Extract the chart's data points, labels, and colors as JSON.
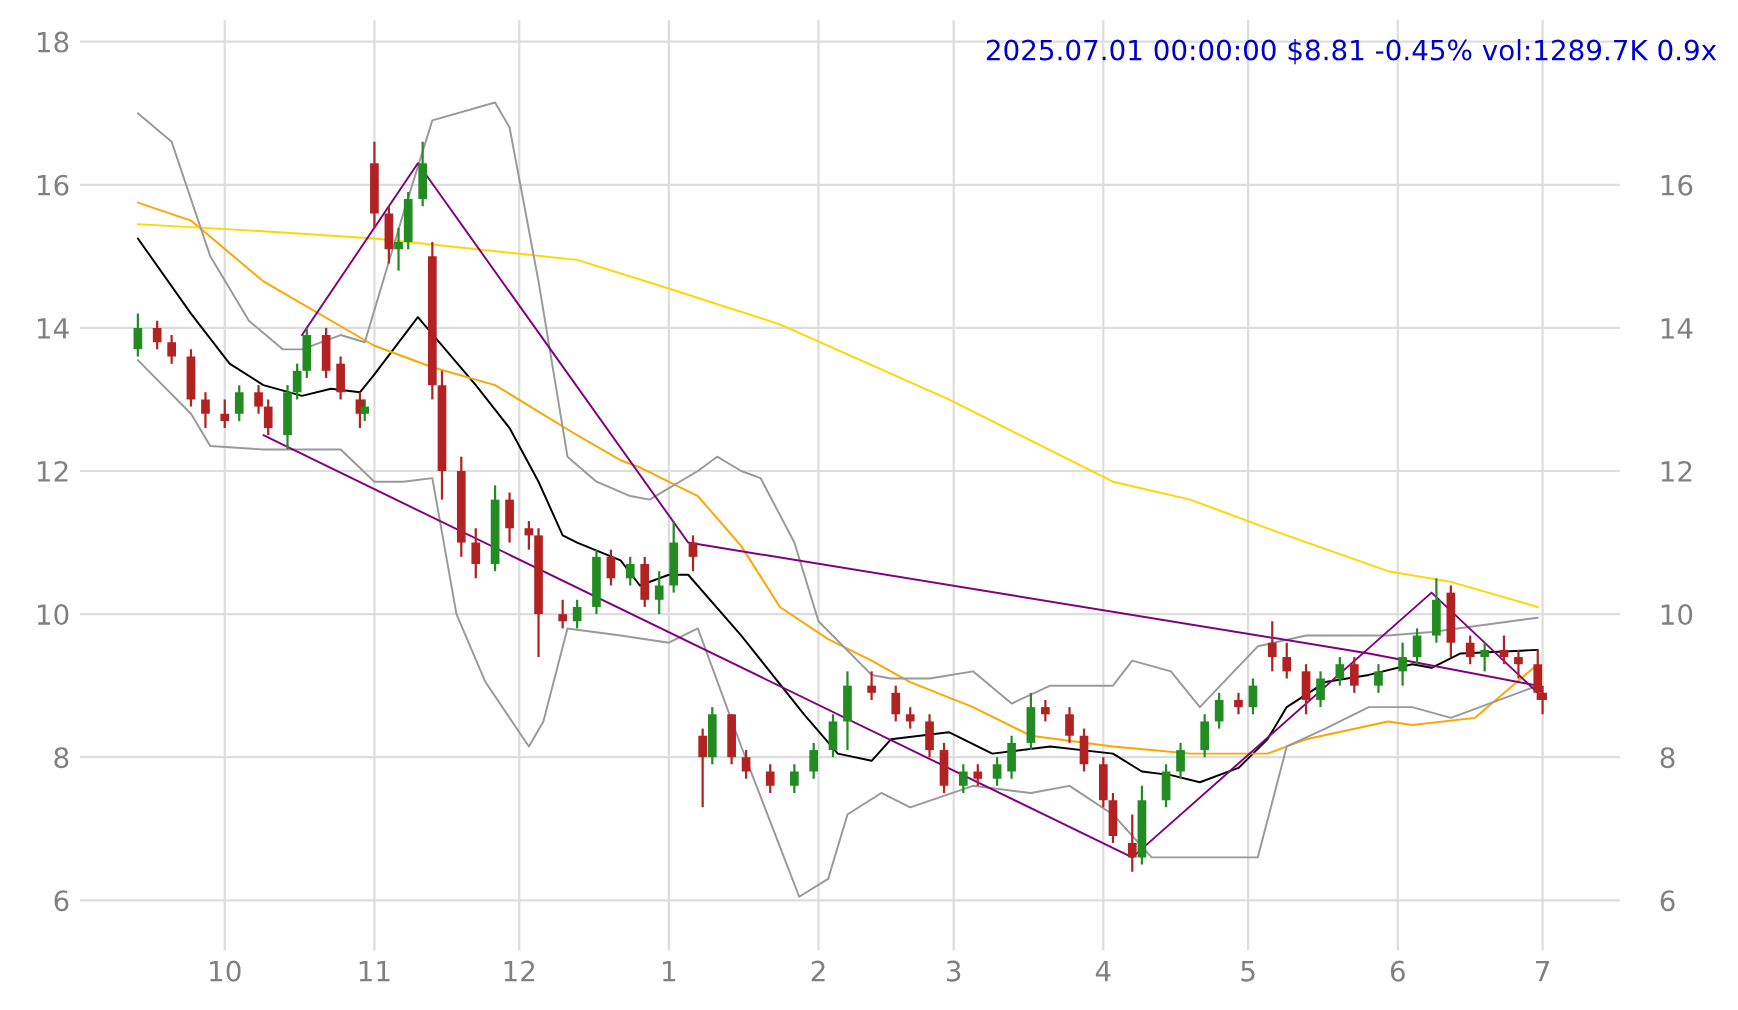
{
  "chart_data": {
    "type": "candlestick",
    "title": "2025.07.01 00:00:00 $8.81 -0.45% vol:1289.7K 0.9x",
    "x": [
      "2024-09-13",
      "2024-09-17",
      "2024-09-20",
      "2024-09-24",
      "2024-09-27",
      "2024-10-01",
      "2024-10-04",
      "2024-10-08",
      "2024-10-10",
      "2024-10-14",
      "2024-10-16",
      "2024-10-18",
      "2024-10-22",
      "2024-10-25",
      "2024-10-29",
      "2024-10-30",
      "2024-11-01",
      "2024-11-04",
      "2024-11-06",
      "2024-11-08",
      "2024-11-11",
      "2024-11-13",
      "2024-11-15",
      "2024-11-19",
      "2024-11-22",
      "2024-11-26",
      "2024-11-29",
      "2024-12-03",
      "2024-12-05",
      "2024-12-10",
      "2024-12-13",
      "2024-12-17",
      "2024-12-20",
      "2024-12-24",
      "2024-12-27",
      "2024-12-30",
      "2025-01-02",
      "2025-01-06",
      "2025-01-08",
      "2025-01-10",
      "2025-01-14",
      "2025-01-17",
      "2025-01-22",
      "2025-01-27",
      "2025-01-31",
      "2025-02-04",
      "2025-02-07",
      "2025-02-12",
      "2025-02-17",
      "2025-02-20",
      "2025-02-24",
      "2025-02-27",
      "2025-03-03",
      "2025-03-06",
      "2025-03-10",
      "2025-03-13",
      "2025-03-17",
      "2025-03-20",
      "2025-03-25",
      "2025-03-28",
      "2025-04-01",
      "2025-04-03",
      "2025-04-07",
      "2025-04-09",
      "2025-04-14",
      "2025-04-17",
      "2025-04-22",
      "2025-04-25",
      "2025-04-29",
      "2025-05-02",
      "2025-05-06",
      "2025-05-09",
      "2025-05-13",
      "2025-05-16",
      "2025-05-20",
      "2025-05-23",
      "2025-05-28",
      "2025-06-02",
      "2025-06-05",
      "2025-06-09",
      "2025-06-12",
      "2025-06-16",
      "2025-06-19",
      "2025-06-23",
      "2025-06-26",
      "2025-06-30",
      "2025-07-01"
    ],
    "ohlc": [
      [
        13.7,
        14.2,
        13.6,
        14.0
      ],
      [
        14.0,
        14.1,
        13.7,
        13.8
      ],
      [
        13.8,
        13.9,
        13.5,
        13.6
      ],
      [
        13.6,
        13.7,
        12.9,
        13.0
      ],
      [
        13.0,
        13.1,
        12.6,
        12.8
      ],
      [
        12.8,
        13.0,
        12.6,
        12.7
      ],
      [
        12.8,
        13.2,
        12.7,
        13.1
      ],
      [
        13.1,
        13.2,
        12.8,
        12.9
      ],
      [
        12.9,
        13.0,
        12.5,
        12.6
      ],
      [
        12.5,
        13.2,
        12.3,
        13.1
      ],
      [
        13.1,
        13.5,
        13.0,
        13.4
      ],
      [
        13.4,
        14.0,
        13.3,
        13.9
      ],
      [
        13.9,
        14.0,
        13.3,
        13.4
      ],
      [
        13.5,
        13.6,
        13.0,
        13.1
      ],
      [
        13.0,
        13.1,
        12.6,
        12.8
      ],
      [
        12.8,
        13.0,
        12.7,
        12.9
      ],
      [
        16.3,
        16.6,
        15.4,
        15.6
      ],
      [
        15.6,
        15.7,
        14.9,
        15.1
      ],
      [
        15.1,
        15.4,
        14.8,
        15.2
      ],
      [
        15.2,
        15.9,
        15.1,
        15.8
      ],
      [
        15.8,
        16.6,
        15.7,
        16.3
      ],
      [
        15.0,
        15.2,
        13.0,
        13.2
      ],
      [
        13.2,
        13.4,
        11.6,
        12.0
      ],
      [
        12.0,
        12.2,
        10.8,
        11.0
      ],
      [
        11.0,
        11.2,
        10.5,
        10.7
      ],
      [
        10.7,
        11.8,
        10.6,
        11.6
      ],
      [
        11.6,
        11.7,
        11.0,
        11.2
      ],
      [
        11.2,
        11.3,
        10.9,
        11.1
      ],
      [
        11.1,
        11.2,
        9.4,
        10.0
      ],
      [
        10.0,
        10.2,
        9.8,
        9.9
      ],
      [
        9.9,
        10.2,
        9.8,
        10.1
      ],
      [
        10.1,
        10.9,
        10.0,
        10.8
      ],
      [
        10.8,
        10.9,
        10.4,
        10.5
      ],
      [
        10.5,
        10.8,
        10.4,
        10.7
      ],
      [
        10.7,
        10.8,
        10.1,
        10.2
      ],
      [
        10.2,
        10.6,
        10.0,
        10.4
      ],
      [
        10.4,
        11.3,
        10.3,
        11.0
      ],
      [
        11.0,
        11.1,
        10.6,
        10.8
      ],
      [
        8.3,
        8.4,
        7.3,
        8.0
      ],
      [
        8.0,
        8.7,
        7.9,
        8.6
      ],
      [
        8.6,
        8.6,
        7.9,
        8.0
      ],
      [
        8.0,
        8.1,
        7.7,
        7.8
      ],
      [
        7.8,
        7.9,
        7.5,
        7.6
      ],
      [
        7.6,
        7.9,
        7.5,
        7.8
      ],
      [
        7.8,
        8.2,
        7.7,
        8.1
      ],
      [
        8.1,
        8.6,
        8.0,
        8.5
      ],
      [
        8.5,
        9.2,
        8.1,
        9.0
      ],
      [
        9.0,
        9.2,
        8.8,
        8.9
      ],
      [
        8.9,
        9.0,
        8.5,
        8.6
      ],
      [
        8.6,
        8.7,
        8.4,
        8.5
      ],
      [
        8.5,
        8.6,
        8.0,
        8.1
      ],
      [
        8.1,
        8.2,
        7.5,
        7.6
      ],
      [
        7.6,
        7.9,
        7.5,
        7.8
      ],
      [
        7.8,
        7.9,
        7.6,
        7.7
      ],
      [
        7.7,
        8.0,
        7.6,
        7.9
      ],
      [
        7.8,
        8.3,
        7.7,
        8.2
      ],
      [
        8.2,
        8.9,
        8.1,
        8.7
      ],
      [
        8.7,
        8.8,
        8.5,
        8.6
      ],
      [
        8.6,
        8.7,
        8.2,
        8.3
      ],
      [
        8.3,
        8.4,
        7.8,
        7.9
      ],
      [
        7.9,
        8.0,
        7.3,
        7.4
      ],
      [
        7.4,
        7.5,
        6.8,
        6.9
      ],
      [
        6.8,
        7.2,
        6.4,
        6.6
      ],
      [
        6.6,
        7.6,
        6.5,
        7.4
      ],
      [
        7.4,
        7.9,
        7.3,
        7.8
      ],
      [
        7.8,
        8.2,
        7.7,
        8.1
      ],
      [
        8.1,
        8.6,
        8.0,
        8.5
      ],
      [
        8.5,
        8.9,
        8.4,
        8.8
      ],
      [
        8.8,
        8.9,
        8.6,
        8.7
      ],
      [
        8.7,
        9.1,
        8.6,
        9.0
      ],
      [
        9.6,
        9.9,
        9.2,
        9.4
      ],
      [
        9.4,
        9.6,
        9.1,
        9.2
      ],
      [
        9.2,
        9.3,
        8.6,
        8.8
      ],
      [
        8.8,
        9.2,
        8.7,
        9.1
      ],
      [
        9.1,
        9.4,
        9.0,
        9.3
      ],
      [
        9.3,
        9.4,
        8.9,
        9.0
      ],
      [
        9.0,
        9.3,
        8.9,
        9.2
      ],
      [
        9.2,
        9.6,
        9.0,
        9.4
      ],
      [
        9.4,
        9.8,
        9.3,
        9.7
      ],
      [
        9.7,
        10.5,
        9.6,
        10.2
      ],
      [
        10.3,
        10.4,
        9.4,
        9.6
      ],
      [
        9.6,
        9.7,
        9.3,
        9.4
      ],
      [
        9.4,
        9.6,
        9.2,
        9.5
      ],
      [
        9.5,
        9.7,
        9.3,
        9.4
      ],
      [
        9.4,
        9.5,
        9.1,
        9.3
      ],
      [
        9.3,
        9.5,
        8.8,
        8.9
      ],
      [
        8.9,
        9.0,
        8.6,
        8.8
      ]
    ],
    "colors": [
      "#228b22",
      "#b22222",
      "#b22222",
      "#b22222",
      "#b22222",
      "#b22222",
      "#228b22",
      "#b22222",
      "#b22222",
      "#228b22",
      "#228b22",
      "#228b22",
      "#b22222",
      "#b22222",
      "#b22222",
      "#228b22",
      "#b22222",
      "#b22222",
      "#228b22",
      "#228b22",
      "#228b22",
      "#b22222",
      "#b22222",
      "#b22222",
      "#b22222",
      "#228b22",
      "#b22222",
      "#b22222",
      "#b22222",
      "#b22222",
      "#228b22",
      "#228b22",
      "#b22222",
      "#228b22",
      "#b22222",
      "#228b22",
      "#228b22",
      "#b22222",
      "#b22222",
      "#228b22",
      "#b22222",
      "#b22222",
      "#b22222",
      "#228b22",
      "#228b22",
      "#228b22",
      "#228b22",
      "#b22222",
      "#b22222",
      "#b22222",
      "#b22222",
      "#b22222",
      "#228b22",
      "#b22222",
      "#228b22",
      "#228b22",
      "#228b22",
      "#b22222",
      "#b22222",
      "#b22222",
      "#b22222",
      "#b22222",
      "#b22222",
      "#228b22",
      "#228b22",
      "#228b22",
      "#228b22",
      "#228b22",
      "#b22222",
      "#228b22",
      "#b22222",
      "#b22222",
      "#b22222",
      "#228b22",
      "#228b22",
      "#b22222",
      "#228b22",
      "#228b22",
      "#228b22",
      "#228b22",
      "#b22222",
      "#b22222",
      "#228b22",
      "#b22222",
      "#b22222",
      "#b22222",
      "#b22222"
    ],
    "series": [
      {
        "type": "line",
        "color": "#000000",
        "x": [
          "2024-09-13",
          "2024-09-24",
          "2024-10-02",
          "2024-10-09",
          "2024-10-17",
          "2024-10-23",
          "2024-10-29",
          "2024-11-01",
          "2024-11-10",
          "2024-11-22",
          "2024-11-29",
          "2024-12-05",
          "2024-12-10",
          "2024-12-13",
          "2024-12-22",
          "2024-12-26",
          "2025-01-01",
          "2025-01-05",
          "2025-01-16",
          "2025-01-29",
          "2025-02-05",
          "2025-02-12",
          "2025-02-16",
          "2025-02-28",
          "2025-03-09",
          "2025-03-21",
          "2025-04-03",
          "2025-04-09",
          "2025-04-15",
          "2025-04-21",
          "2025-04-29",
          "2025-05-05",
          "2025-05-09",
          "2025-05-17",
          "2025-05-26",
          "2025-06-04",
          "2025-06-08",
          "2025-06-14",
          "2025-06-30"
        ],
        "values": [
          15.25,
          14.2,
          13.5,
          13.2,
          13.05,
          13.15,
          13.1,
          13.35,
          14.15,
          13.2,
          12.6,
          11.85,
          11.1,
          11.0,
          10.75,
          10.4,
          10.55,
          10.55,
          9.7,
          8.6,
          8.05,
          7.95,
          8.25,
          8.35,
          8.05,
          8.15,
          8.05,
          7.8,
          7.75,
          7.65,
          7.85,
          8.25,
          8.7,
          9.05,
          9.15,
          9.3,
          9.25,
          9.45,
          9.5
        ]
      },
      {
        "type": "line",
        "color": "#ffa500",
        "x": [
          "2024-09-13",
          "2024-09-24",
          "2024-10-09",
          "2024-11-01",
          "2024-11-13",
          "2024-11-26",
          "2024-12-13",
          "2024-12-22",
          "2024-12-26",
          "2025-01-07",
          "2025-01-16",
          "2025-01-24",
          "2025-02-03",
          "2025-02-12",
          "2025-02-20",
          "2025-03-05",
          "2025-03-17",
          "2025-04-03",
          "2025-04-11",
          "2025-04-19",
          "2025-05-05",
          "2025-05-13",
          "2025-05-30",
          "2025-06-04",
          "2025-06-17",
          "2025-06-30"
        ],
        "values": [
          15.75,
          15.5,
          14.65,
          13.75,
          13.45,
          13.2,
          12.5,
          12.15,
          12.05,
          11.65,
          10.95,
          10.1,
          9.65,
          9.35,
          9.05,
          8.7,
          8.3,
          8.15,
          8.1,
          8.05,
          8.05,
          8.25,
          8.5,
          8.45,
          8.55,
          9.3
        ]
      },
      {
        "type": "line",
        "color": "#ffd700",
        "x": [
          "2024-09-13",
          "2024-10-09",
          "2024-11-01",
          "2024-12-13",
          "2025-01-01",
          "2025-01-24",
          "2025-02-28",
          "2025-04-03",
          "2025-04-19",
          "2025-05-09",
          "2025-05-30",
          "2025-06-12",
          "2025-06-30"
        ],
        "values": [
          15.45,
          15.35,
          15.25,
          14.95,
          14.55,
          14.05,
          13.0,
          11.85,
          11.6,
          11.1,
          10.6,
          10.45,
          10.1
        ]
      },
      {
        "type": "line",
        "color": "#999999",
        "x": [
          "2024-09-13",
          "2024-09-20",
          "2024-09-28",
          "2024-10-06",
          "2024-10-13",
          "2024-10-17",
          "2024-10-25",
          "2024-10-30",
          "2024-11-07",
          "2024-11-13",
          "2024-11-26",
          "2024-11-29",
          "2024-12-05",
          "2024-12-11",
          "2024-12-17",
          "2024-12-24",
          "2024-12-28",
          "2025-01-07",
          "2025-01-11",
          "2025-01-16",
          "2025-01-20",
          "2025-01-27",
          "2025-02-01",
          "2025-02-12",
          "2025-02-16",
          "2025-02-24",
          "2025-03-05",
          "2025-03-13",
          "2025-03-21",
          "2025-04-03",
          "2025-04-07",
          "2025-04-15",
          "2025-04-21",
          "2025-05-03",
          "2025-05-13",
          "2025-05-30",
          "2025-06-08",
          "2025-06-30"
        ],
        "values": [
          17.0,
          16.6,
          15.0,
          14.1,
          13.7,
          13.7,
          13.9,
          13.8,
          15.6,
          16.9,
          17.15,
          16.8,
          14.65,
          12.2,
          11.85,
          11.65,
          11.6,
          12.0,
          12.2,
          12.0,
          11.9,
          11.0,
          9.9,
          9.15,
          9.1,
          9.1,
          9.2,
          8.75,
          9.0,
          9.0,
          9.35,
          9.2,
          8.7,
          9.55,
          9.7,
          9.7,
          9.75,
          9.95
        ]
      },
      {
        "type": "line",
        "color": "#999999",
        "x": [
          "2024-09-13",
          "2024-09-24",
          "2024-09-28",
          "2024-10-09",
          "2024-10-25",
          "2024-11-01",
          "2024-11-07",
          "2024-11-13",
          "2024-11-18",
          "2024-11-24",
          "2024-12-03",
          "2024-12-06",
          "2024-12-11",
          "2024-12-22",
          "2025-01-01",
          "2025-01-07",
          "2025-01-16",
          "2025-01-24",
          "2025-01-28",
          "2025-02-03",
          "2025-02-07",
          "2025-02-14",
          "2025-02-20",
          "2025-03-05",
          "2025-03-17",
          "2025-03-25",
          "2025-04-03",
          "2025-04-11",
          "2025-05-03",
          "2025-05-09",
          "2025-05-17",
          "2025-05-26",
          "2025-06-04",
          "2025-06-12",
          "2025-06-30"
        ],
        "values": [
          13.55,
          12.8,
          12.35,
          12.3,
          12.3,
          11.85,
          11.85,
          11.9,
          10.0,
          9.05,
          8.15,
          8.5,
          9.8,
          9.7,
          9.6,
          9.8,
          8.15,
          6.75,
          6.05,
          6.3,
          7.2,
          7.5,
          7.3,
          7.6,
          7.5,
          7.6,
          7.2,
          6.6,
          6.6,
          8.15,
          8.4,
          8.7,
          8.7,
          8.55,
          9.0
        ]
      },
      {
        "type": "line",
        "color": "#800080",
        "x": [
          "2024-10-09",
          "2025-04-07",
          "2025-06-08",
          "2025-06-30"
        ],
        "values": [
          12.5,
          6.6,
          10.3,
          8.9
        ]
      },
      {
        "type": "line",
        "color": "#800080",
        "x": [
          "2024-10-17",
          "2024-11-10",
          "2025-01-05",
          "2025-05-26",
          "2025-06-30"
        ],
        "values": [
          13.9,
          16.3,
          11.0,
          9.45,
          9.0
        ]
      }
    ],
    "xlim": [
      "2024-09-01",
      "2025-07-17"
    ],
    "xticks": [
      {
        "value": "2024-10-01",
        "label": "10"
      },
      {
        "value": "2024-11-01",
        "label": "11"
      },
      {
        "value": "2024-12-01",
        "label": "12"
      },
      {
        "value": "2025-01-01",
        "label": "1"
      },
      {
        "value": "2025-02-01",
        "label": "2"
      },
      {
        "value": "2025-03-01",
        "label": "3"
      },
      {
        "value": "2025-04-01",
        "label": "4"
      },
      {
        "value": "2025-05-01",
        "label": "5"
      },
      {
        "value": "2025-06-01",
        "label": "6"
      },
      {
        "value": "2025-07-01",
        "label": "7"
      }
    ],
    "ylim": [
      5.3,
      18.3
    ],
    "yticks": [
      6,
      8,
      10,
      12,
      14,
      16,
      18
    ],
    "y2lim": [
      5.3,
      18.3
    ],
    "y2ticks": [
      6,
      8,
      10,
      12,
      14,
      16
    ],
    "grid": true
  }
}
